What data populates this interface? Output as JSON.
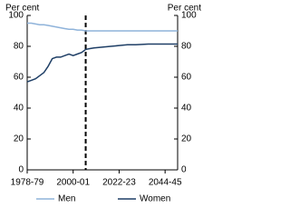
{
  "chart_data": {
    "type": "line",
    "ylabel": "Per cent",
    "y2label": "Per cent",
    "x": [
      1978,
      1980,
      1982,
      1984,
      1986,
      1988,
      1990,
      1992,
      1994,
      1996,
      1998,
      2000,
      2002,
      2004,
      2006,
      2008,
      2010,
      2014,
      2018,
      2022,
      2026,
      2030,
      2036,
      2042,
      2048,
      2050
    ],
    "series": [
      {
        "name": "Men",
        "color": "#8fb3da",
        "values": [
          95,
          95,
          94.5,
          94,
          94,
          93.5,
          93,
          92.5,
          92,
          91.5,
          91,
          91,
          90.5,
          90.5,
          90,
          90,
          90,
          90,
          90,
          90,
          90,
          90,
          90,
          90,
          90,
          90
        ]
      },
      {
        "name": "Women",
        "color": "#1f3f66",
        "values": [
          57,
          58,
          59,
          61,
          63,
          67,
          72,
          73,
          73,
          74,
          75,
          74,
          75,
          76,
          78,
          78.5,
          79,
          79.5,
          80,
          80.5,
          81,
          81,
          81.5,
          81.5,
          81.5,
          81.5
        ]
      }
    ],
    "xlim": [
      1978,
      2050
    ],
    "xticks": [
      {
        "value": 1978,
        "label": "1978-79"
      },
      {
        "value": 2000,
        "label": "2000-01"
      },
      {
        "value": 2022,
        "label": "2022-23"
      },
      {
        "value": 2044,
        "label": "2044-45"
      }
    ],
    "ylim": [
      0,
      100
    ],
    "yticks": [
      0,
      20,
      40,
      60,
      80,
      100
    ],
    "y2lim": [
      0,
      100
    ],
    "y2ticks": [
      0,
      20,
      40,
      60,
      80,
      100
    ],
    "reference_line_x": 2006,
    "grid": false
  }
}
